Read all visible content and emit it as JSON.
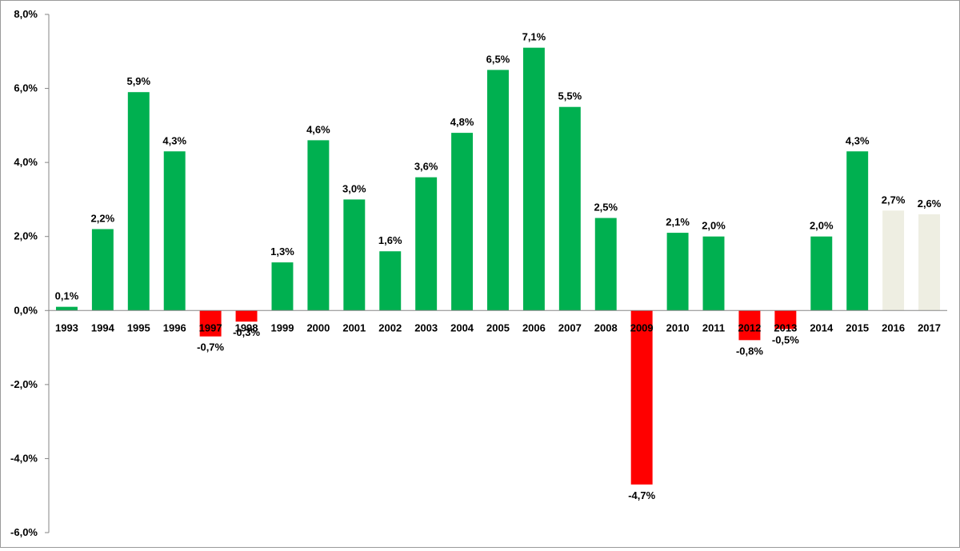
{
  "chart_data": {
    "type": "bar",
    "categories": [
      "1993",
      "1994",
      "1995",
      "1996",
      "1997",
      "1998",
      "1999",
      "2000",
      "2001",
      "2002",
      "2003",
      "2004",
      "2005",
      "2006",
      "2007",
      "2008",
      "2009",
      "2010",
      "2011",
      "2012",
      "2013",
      "2014",
      "2015",
      "2016",
      "2017"
    ],
    "values": [
      0.1,
      2.2,
      5.9,
      4.3,
      -0.7,
      -0.3,
      1.3,
      4.6,
      3.0,
      1.6,
      3.6,
      4.8,
      6.5,
      7.1,
      5.5,
      2.5,
      -4.7,
      2.1,
      2.0,
      -0.8,
      -0.5,
      2.0,
      4.3,
      2.7,
      2.6
    ],
    "data_labels": [
      "0,1%",
      "2,2%",
      "5,9%",
      "4,3%",
      "-0,7%",
      "-0,3%",
      "1,3%",
      "4,6%",
      "3,0%",
      "1,6%",
      "3,6%",
      "4,8%",
      "6,5%",
      "7,1%",
      "5,5%",
      "2,5%",
      "-4,7%",
      "2,1%",
      "2,0%",
      "-0,8%",
      "-0,5%",
      "2,0%",
      "4,3%",
      "2,7%",
      "2,6%"
    ],
    "bar_status": [
      "actual",
      "actual",
      "actual",
      "actual",
      "actual",
      "actual",
      "actual",
      "actual",
      "actual",
      "actual",
      "actual",
      "actual",
      "actual",
      "actual",
      "actual",
      "actual",
      "actual",
      "actual",
      "actual",
      "actual",
      "actual",
      "actual",
      "actual",
      "forecast",
      "forecast"
    ],
    "colors": {
      "positive": "#00b050",
      "negative": "#ff0000",
      "forecast": "#eeeee2",
      "axis": "#868686"
    },
    "ylim": [
      -6,
      8
    ],
    "y_ticks": [
      8,
      6,
      4,
      2,
      0,
      -2,
      -4,
      -6
    ],
    "y_tick_labels": [
      "8,0%",
      "6,0%",
      "4,0%",
      "2,0%",
      "0,0%",
      "-2,0%",
      "-4,0%",
      "-6,0%"
    ],
    "title": "",
    "xlabel": "",
    "ylabel": "",
    "grid": false,
    "legend": "none"
  }
}
